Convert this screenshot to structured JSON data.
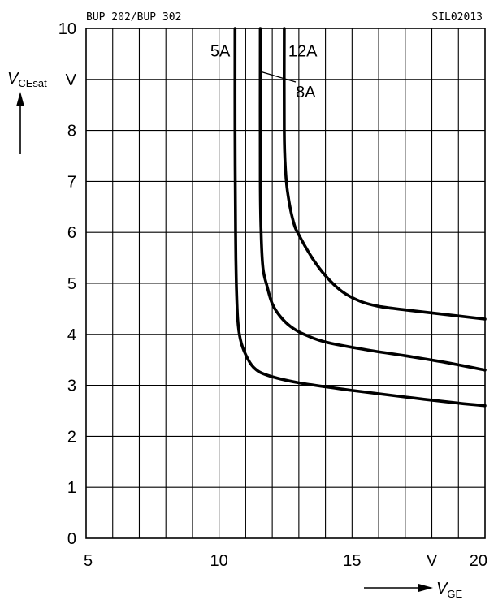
{
  "header": {
    "left": "BUP 202/BUP 302",
    "right": "SIL02013"
  },
  "chart_data": {
    "type": "line",
    "title": "",
    "x_ticks": [
      "5",
      "10",
      "15",
      "20"
    ],
    "x_unit": "V",
    "y_ticks": [
      "0",
      "1",
      "2",
      "3",
      "4",
      "5",
      "6",
      "7",
      "8",
      "10"
    ],
    "y_unit": "V",
    "xlim": [
      5,
      20
    ],
    "ylim": [
      0,
      10
    ],
    "grid": true,
    "xlabel": {
      "main": "V",
      "sub": "GE"
    },
    "ylabel": {
      "main": "V",
      "sub": "CEsat"
    },
    "series": [
      {
        "name": "5A",
        "x": [
          10.6,
          10.6,
          10.62,
          10.65,
          10.7,
          10.8,
          11.0,
          11.3,
          11.8,
          13.0,
          15.0,
          17.0,
          19.0,
          20.0
        ],
        "y": [
          10.0,
          8.0,
          6.0,
          5.0,
          4.3,
          3.9,
          3.6,
          3.35,
          3.2,
          3.05,
          2.9,
          2.77,
          2.65,
          2.6
        ]
      },
      {
        "name": "8A",
        "x": [
          11.55,
          11.55,
          11.58,
          11.65,
          11.8,
          12.0,
          12.3,
          12.7,
          13.2,
          14.0,
          15.5,
          17.0,
          18.5,
          20.0
        ],
        "y": [
          10.0,
          7.0,
          6.0,
          5.3,
          4.95,
          4.6,
          4.35,
          4.15,
          4.0,
          3.85,
          3.7,
          3.58,
          3.45,
          3.3
        ]
      },
      {
        "name": "12A",
        "x": [
          12.45,
          12.45,
          12.5,
          12.6,
          12.8,
          13.0,
          13.5,
          14.0,
          14.6,
          15.3,
          16.0,
          17.0,
          18.0,
          20.0
        ],
        "y": [
          10.0,
          8.0,
          7.2,
          6.7,
          6.2,
          5.95,
          5.5,
          5.15,
          4.85,
          4.65,
          4.55,
          4.48,
          4.42,
          4.3
        ]
      }
    ]
  }
}
